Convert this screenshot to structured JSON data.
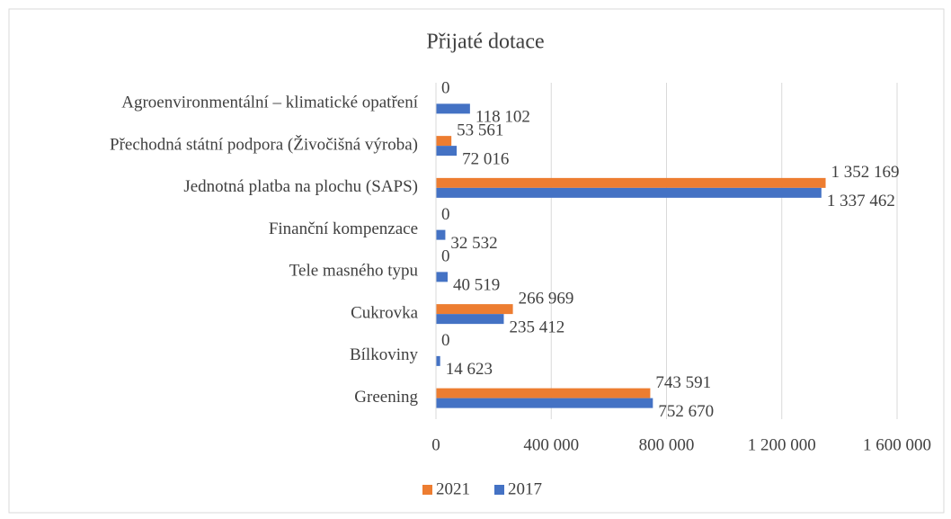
{
  "chart_data": {
    "type": "bar",
    "orientation": "horizontal",
    "title": "Přijaté dotace",
    "categories": [
      "Agroenvironmentální – klimatické opatření",
      "Přechodná státní podpora (Živočišná výroba)",
      "Jednotná platba na plochu (SAPS)",
      "Finanční kompenzace",
      "Tele masného typu",
      "Cukrovka",
      "Bílkoviny",
      "Greening"
    ],
    "series": [
      {
        "name": "2021",
        "color": "#ed7d31",
        "values": [
          0,
          53561,
          1352169,
          0,
          0,
          266969,
          0,
          743591
        ],
        "value_labels": [
          "0",
          "53 561",
          "1 352 169",
          "0",
          "0",
          "266 969",
          "0",
          "743 591"
        ]
      },
      {
        "name": "2017",
        "color": "#4472c4",
        "values": [
          118102,
          72016,
          1337462,
          32532,
          40519,
          235412,
          14623,
          752670
        ],
        "value_labels": [
          "118 102",
          "72 016",
          "1 337 462",
          "32 532",
          "40 519",
          "235 412",
          "14 623",
          "752 670"
        ]
      }
    ],
    "xlim": [
      0,
      1600000
    ],
    "xticks": [
      0,
      {
        "value": 400000,
        "label": "400 000"
      },
      {
        "value": 800000,
        "label": "800 000"
      },
      {
        "value": 1200000,
        "label": "1 200 000"
      },
      {
        "value": 1600000,
        "label": "1 600 000"
      }
    ],
    "grid": true,
    "legend": "bottom"
  }
}
